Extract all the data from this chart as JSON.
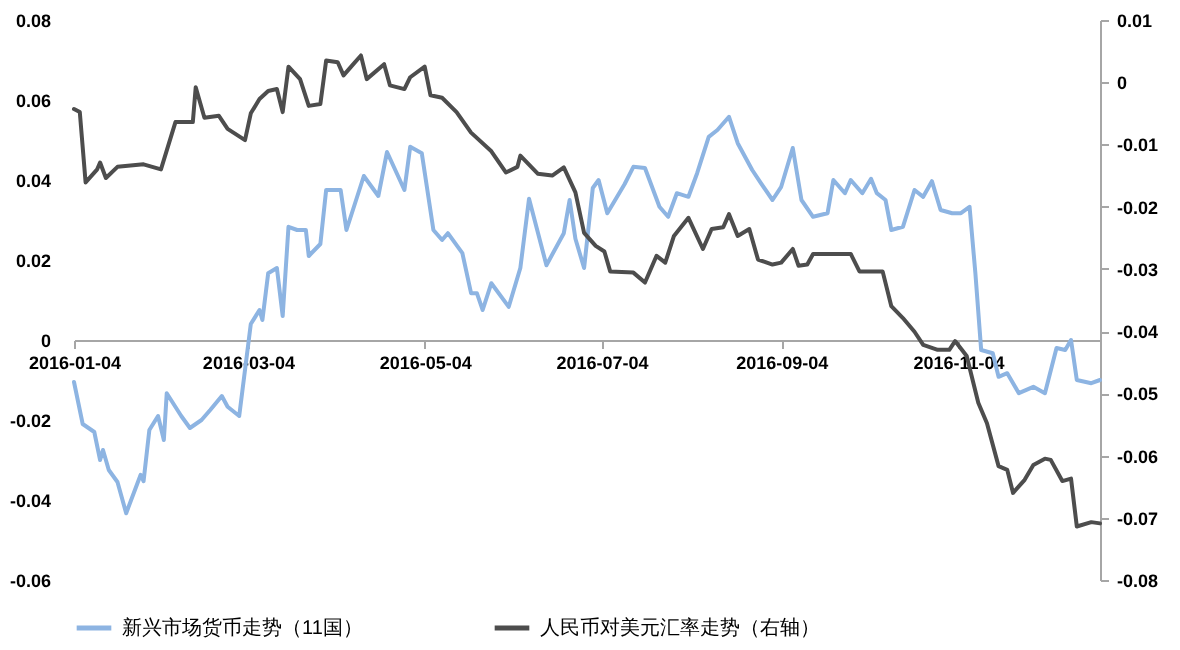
{
  "chart_data": {
    "type": "line",
    "xlim": [
      "2016-01-04",
      "2016-12-23"
    ],
    "xticks": [
      "2016-01-04",
      "2016-03-04",
      "2016-05-04",
      "2016-07-04",
      "2016-09-04",
      "2016-11-04"
    ],
    "ylim": [
      -0.06,
      0.08
    ],
    "yticks": [
      -0.06,
      -0.04,
      -0.02,
      0,
      0.02,
      0.04,
      0.06,
      0.08
    ],
    "y2lim": [
      -0.08,
      0.01
    ],
    "y2ticks": [
      -0.08,
      -0.07,
      -0.06,
      -0.05,
      -0.04,
      -0.03,
      -0.02,
      -0.01,
      0,
      0.01
    ],
    "legend": "bottom",
    "marker": "none",
    "line_style": "solid",
    "series": [
      {
        "name": "新兴市场货币走势（11国）",
        "color": "#8db4e2",
        "x": [
          "2016-01-04",
          "2016-01-07",
          "2016-01-11",
          "2016-01-13",
          "2016-01-14",
          "2016-01-16",
          "2016-01-19",
          "2016-01-22",
          "2016-01-27",
          "2016-01-28",
          "2016-01-30",
          "2016-02-02",
          "2016-02-04",
          "2016-02-05",
          "2016-02-10",
          "2016-02-13",
          "2016-02-17",
          "2016-02-20",
          "2016-02-24",
          "2016-02-26",
          "2016-03-01",
          "2016-03-05",
          "2016-03-08",
          "2016-03-09",
          "2016-03-11",
          "2016-03-14",
          "2016-03-16",
          "2016-03-18",
          "2016-03-21",
          "2016-03-24",
          "2016-03-25",
          "2016-03-29",
          "2016-03-31",
          "2016-04-05",
          "2016-04-07",
          "2016-04-13",
          "2016-04-18",
          "2016-04-21",
          "2016-04-27",
          "2016-04-29",
          "2016-05-03",
          "2016-05-07",
          "2016-05-10",
          "2016-05-12",
          "2016-05-17",
          "2016-05-20",
          "2016-05-22",
          "2016-05-24",
          "2016-05-27",
          "2016-06-02",
          "2016-06-06",
          "2016-06-09",
          "2016-06-15",
          "2016-06-21",
          "2016-06-23",
          "2016-06-25",
          "2016-06-28",
          "2016-07-01",
          "2016-07-03",
          "2016-07-06",
          "2016-07-12",
          "2016-07-15",
          "2016-07-19",
          "2016-07-24",
          "2016-07-27",
          "2016-07-30",
          "2016-08-03",
          "2016-08-06",
          "2016-08-10",
          "2016-08-13",
          "2016-08-17",
          "2016-08-20",
          "2016-08-25",
          "2016-08-28",
          "2016-09-01",
          "2016-09-04",
          "2016-09-08",
          "2016-09-11",
          "2016-09-15",
          "2016-09-20",
          "2016-09-22",
          "2016-09-26",
          "2016-09-28",
          "2016-10-02",
          "2016-10-05",
          "2016-10-07",
          "2016-10-10",
          "2016-10-12",
          "2016-10-16",
          "2016-10-20",
          "2016-10-23",
          "2016-10-26",
          "2016-10-29",
          "2016-11-02",
          "2016-11-05",
          "2016-11-08",
          "2016-11-10",
          "2016-11-12",
          "2016-11-16",
          "2016-11-18",
          "2016-11-21",
          "2016-11-25",
          "2016-11-30",
          "2016-12-04",
          "2016-12-08",
          "2016-12-11",
          "2016-12-13",
          "2016-12-15",
          "2016-12-20",
          "2016-12-23"
        ],
        "values": [
          -0.0105,
          -0.021,
          -0.023,
          -0.03,
          -0.0275,
          -0.0325,
          -0.0355,
          -0.0433,
          -0.0337,
          -0.0353,
          -0.0225,
          -0.019,
          -0.025,
          -0.0133,
          -0.019,
          -0.022,
          -0.02,
          -0.0175,
          -0.014,
          -0.0167,
          -0.019,
          0.004,
          0.0075,
          0.005,
          0.0167,
          0.018,
          0.006,
          0.0283,
          0.0275,
          0.0275,
          0.021,
          0.024,
          0.0375,
          0.0375,
          0.0275,
          0.041,
          0.036,
          0.047,
          0.0375,
          0.0483,
          0.0467,
          0.0275,
          0.025,
          0.0267,
          0.0217,
          0.0117,
          0.0117,
          0.0075,
          0.0142,
          0.0083,
          0.018,
          0.0353,
          0.0187,
          0.0267,
          0.035,
          0.0253,
          0.018,
          0.038,
          0.04,
          0.0317,
          0.039,
          0.0433,
          0.043,
          0.0333,
          0.0308,
          0.0367,
          0.0358,
          0.0417,
          0.0508,
          0.0525,
          0.0558,
          0.0492,
          0.0425,
          0.0392,
          0.035,
          0.0383,
          0.048,
          0.035,
          0.0308,
          0.0317,
          0.04,
          0.0367,
          0.04,
          0.0367,
          0.0403,
          0.0367,
          0.035,
          0.0275,
          0.0283,
          0.0375,
          0.0358,
          0.0397,
          0.0325,
          0.0317,
          0.0317,
          0.0333,
          0.0167,
          -0.0025,
          -0.0033,
          -0.0092,
          -0.0083,
          -0.0133,
          -0.0117,
          -0.0133,
          -0.002,
          -0.0025,
          0,
          -0.01,
          -0.0108,
          -0.01
        ]
      },
      {
        "name": "人民币对美元汇率走势（右轴）",
        "color": "#4d4d4d",
        "axis": "y2",
        "x": [
          "2016-01-04",
          "2016-01-06",
          "2016-01-08",
          "2016-01-12",
          "2016-01-13",
          "2016-01-15",
          "2016-01-19",
          "2016-01-28",
          "2016-02-03",
          "2016-02-08",
          "2016-02-14",
          "2016-02-15",
          "2016-02-18",
          "2016-02-23",
          "2016-02-26",
          "2016-03-03",
          "2016-03-05",
          "2016-03-08",
          "2016-03-11",
          "2016-03-14",
          "2016-03-16",
          "2016-03-18",
          "2016-03-22",
          "2016-03-25",
          "2016-03-29",
          "2016-03-31",
          "2016-04-04",
          "2016-04-06",
          "2016-04-09",
          "2016-04-12",
          "2016-04-14",
          "2016-04-20",
          "2016-04-22",
          "2016-04-27",
          "2016-04-29",
          "2016-05-04",
          "2016-05-06",
          "2016-05-10",
          "2016-05-15",
          "2016-05-20",
          "2016-05-27",
          "2016-06-01",
          "2016-06-05",
          "2016-06-06",
          "2016-06-12",
          "2016-06-17",
          "2016-06-21",
          "2016-06-25",
          "2016-06-28",
          "2016-07-02",
          "2016-07-05",
          "2016-07-07",
          "2016-07-15",
          "2016-07-19",
          "2016-07-23",
          "2016-07-26",
          "2016-07-29",
          "2016-08-03",
          "2016-08-08",
          "2016-08-11",
          "2016-08-15",
          "2016-08-17",
          "2016-08-20",
          "2016-08-24",
          "2016-08-27",
          "2016-09-01",
          "2016-09-04",
          "2016-09-08",
          "2016-09-10",
          "2016-09-13",
          "2016-09-15",
          "2016-09-28",
          "2016-10-01",
          "2016-10-09",
          "2016-10-12",
          "2016-10-16",
          "2016-10-20",
          "2016-10-23",
          "2016-10-28",
          "2016-11-01",
          "2016-11-03",
          "2016-11-07",
          "2016-11-11",
          "2016-11-14",
          "2016-11-18",
          "2016-11-21",
          "2016-11-23",
          "2016-11-27",
          "2016-11-30",
          "2016-12-04",
          "2016-12-06",
          "2016-12-10",
          "2016-12-13",
          "2016-12-15",
          "2016-12-20",
          "2016-12-23"
        ],
        "values": [
          -0.0043,
          -0.0048,
          -0.0161,
          -0.014,
          -0.0129,
          -0.0154,
          -0.0136,
          -0.0132,
          -0.014,
          -0.0064,
          -0.0064,
          -0.0008,
          -0.0057,
          -0.0054,
          -0.0075,
          -0.0093,
          -0.005,
          -0.0027,
          -0.0014,
          -0.0011,
          -0.0048,
          0.0025,
          0.0005,
          -0.0038,
          -0.0035,
          0.0035,
          0.0032,
          0.0011,
          0.0027,
          0.0043,
          0.0005,
          0.0029,
          -0.0005,
          -0.0011,
          0.0008,
          0.0025,
          -0.0021,
          -0.0025,
          -0.0048,
          -0.0081,
          -0.0111,
          -0.0145,
          -0.0136,
          -0.0118,
          -0.0147,
          -0.015,
          -0.0137,
          -0.0177,
          -0.0242,
          -0.0263,
          -0.0272,
          -0.0304,
          -0.0306,
          -0.0322,
          -0.0279,
          -0.029,
          -0.0247,
          -0.0218,
          -0.0268,
          -0.0236,
          -0.0233,
          -0.0212,
          -0.0247,
          -0.0236,
          -0.0285,
          -0.0293,
          -0.029,
          -0.0268,
          -0.0295,
          -0.0293,
          -0.0276,
          -0.0276,
          -0.0304,
          -0.0304,
          -0.036,
          -0.0379,
          -0.0401,
          -0.0422,
          -0.043,
          -0.043,
          -0.0416,
          -0.044,
          -0.0515,
          -0.0548,
          -0.0617,
          -0.0623,
          -0.066,
          -0.0639,
          -0.0615,
          -0.0605,
          -0.0607,
          -0.0641,
          -0.0637,
          -0.0714,
          -0.0707,
          -0.0709
        ]
      }
    ]
  }
}
